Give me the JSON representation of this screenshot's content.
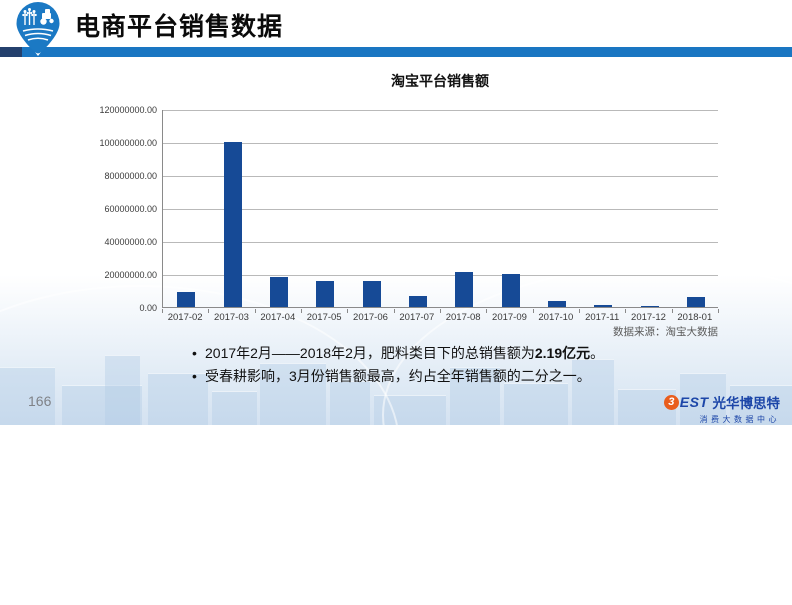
{
  "header": {
    "title": "电商平台销售数据",
    "icon": "farm-location-pin-icon",
    "bar_color": "#1a76c2",
    "bar_accent_color": "#24406d"
  },
  "chart_data": {
    "type": "bar",
    "title": "淘宝平台销售额",
    "categories": [
      "2017-02",
      "2017-03",
      "2017-04",
      "2017-05",
      "2017-06",
      "2017-07",
      "2017-08",
      "2017-09",
      "2017-10",
      "2017-11",
      "2017-12",
      "2018-01"
    ],
    "values": [
      9000000,
      100000000,
      18000000,
      16000000,
      16000000,
      6600000,
      21500000,
      20000000,
      3600000,
      1500000,
      600000,
      6000000
    ],
    "xlabel": "",
    "ylabel": "",
    "ylim": [
      0,
      120000000
    ],
    "ytick_interval": 20000000,
    "ytick_labels": [
      "0.00",
      "20000000.00",
      "40000000.00",
      "60000000.00",
      "80000000.00",
      "100000000.00",
      "120000000.00"
    ],
    "grid": true,
    "legend": "none",
    "bar_color": "#164a96",
    "source_note": "数据来源：淘宝大数据"
  },
  "bullets": [
    {
      "prefix": "2017年2月——2018年2月，肥料类目下的总销售额为",
      "bold": "2.19亿元",
      "suffix": "。"
    },
    {
      "prefix": "受春耕影响，3月份销售额最高，约占全年销售额的二分之一。",
      "bold": "",
      "suffix": ""
    }
  ],
  "footer": {
    "page_number": "166",
    "logo": {
      "mark": "3",
      "name_latin": "EST",
      "name_cn": "光华博思特",
      "subtitle": "消费大数据中心",
      "accent_color": "#e95d1d",
      "text_color": "#1c46a8"
    }
  }
}
